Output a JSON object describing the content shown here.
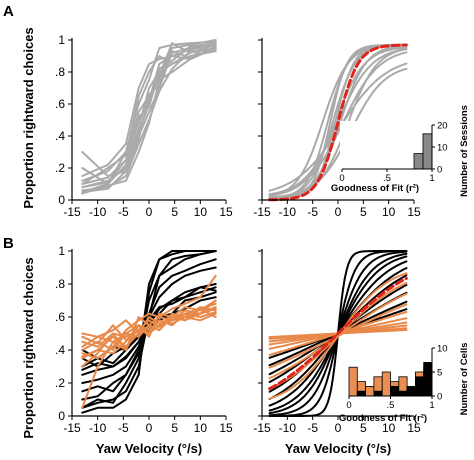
{
  "panel_labels": [
    "A",
    "B"
  ],
  "labels": {
    "ylabel_A": "Proportion rightward choices",
    "ylabel_B": "Proportion rightward choices",
    "xlabel_B_left": "Yaw Velocity (°/s)",
    "xlabel_B_right": "Yaw Velocity (°/s)",
    "inset_xlabel_A": "Goodness of Fit (r²)",
    "inset_ylabel_A": "Number of Sessions",
    "inset_xlabel_B": "Goodness of Fit (r²)",
    "inset_ylabel_B": "Number of Cells"
  },
  "colors": {
    "gray": "#aaaaaa",
    "black": "#000000",
    "orange": "#e8894a",
    "fit_mean": "#e0241b",
    "bar_gray": "#888888"
  },
  "chart_data": [
    {
      "id": "A-left-raw",
      "type": "line",
      "xlim": [
        -15,
        15
      ],
      "ylim": [
        0,
        1
      ],
      "xticks": [
        -15,
        -10,
        -5,
        0,
        5,
        10,
        15
      ],
      "yticks": [
        0,
        0.2,
        0.4,
        0.6,
        0.8,
        1
      ],
      "x": [
        -13,
        -8,
        -4.5,
        -2,
        0,
        2,
        4.5,
        8,
        13
      ],
      "series": [
        {
          "color": "gray",
          "values": [
            0.1,
            0.14,
            0.25,
            0.55,
            0.65,
            0.75,
            0.8,
            0.88,
            0.95
          ]
        },
        {
          "color": "gray",
          "values": [
            0.08,
            0.12,
            0.2,
            0.45,
            0.7,
            0.8,
            0.85,
            0.92,
            0.97
          ]
        },
        {
          "color": "gray",
          "values": [
            0.05,
            0.1,
            0.22,
            0.5,
            0.62,
            0.85,
            0.9,
            0.88,
            0.96
          ]
        },
        {
          "color": "gray",
          "values": [
            0.12,
            0.18,
            0.3,
            0.6,
            0.75,
            0.95,
            0.97,
            0.98,
            0.99
          ]
        },
        {
          "color": "gray",
          "values": [
            0.3,
            0.15,
            0.18,
            0.4,
            0.55,
            0.7,
            0.92,
            0.95,
            0.98
          ]
        },
        {
          "color": "gray",
          "values": [
            0.06,
            0.08,
            0.15,
            0.35,
            0.5,
            0.68,
            0.82,
            0.93,
            0.94
          ]
        },
        {
          "color": "gray",
          "values": [
            0.1,
            0.2,
            0.28,
            0.65,
            0.8,
            0.9,
            0.85,
            0.9,
            0.93
          ]
        },
        {
          "color": "gray",
          "values": [
            0.04,
            0.09,
            0.12,
            0.3,
            0.48,
            0.75,
            0.95,
            0.97,
            1.0
          ]
        },
        {
          "color": "gray",
          "values": [
            0.15,
            0.22,
            0.35,
            0.7,
            0.85,
            0.88,
            0.9,
            0.94,
            0.97
          ]
        },
        {
          "color": "gray",
          "values": [
            0.08,
            0.11,
            0.25,
            0.42,
            0.6,
            0.78,
            0.98,
            0.92,
            0.95
          ]
        },
        {
          "color": "gray",
          "values": [
            0.2,
            0.1,
            0.3,
            0.52,
            0.58,
            0.82,
            0.87,
            0.96,
            0.98
          ]
        },
        {
          "color": "gray",
          "values": [
            0.05,
            0.07,
            0.18,
            0.38,
            0.66,
            0.72,
            0.93,
            0.89,
            0.99
          ]
        }
      ]
    },
    {
      "id": "A-right-fits",
      "type": "line",
      "xlim": [
        -15,
        15
      ],
      "ylim": [
        0,
        1
      ],
      "xticks": [
        -15,
        -10,
        -5,
        0,
        5,
        10,
        15
      ],
      "yticks": [
        0,
        0.2,
        0.4,
        0.6,
        0.8,
        1
      ],
      "curve_range": [
        -13.5,
        13.5
      ],
      "series": [
        {
          "color": "gray",
          "model": "logistic",
          "mu": -1.0,
          "slope": 0.45,
          "lo": 0.01,
          "hi": 0.97
        },
        {
          "color": "gray",
          "model": "logistic",
          "mu": -0.5,
          "slope": 0.35,
          "lo": 0.02,
          "hi": 0.96
        },
        {
          "color": "gray",
          "model": "logistic",
          "mu": 0.0,
          "slope": 0.3,
          "lo": 0.02,
          "hi": 0.96
        },
        {
          "color": "gray",
          "model": "logistic",
          "mu": 0.5,
          "slope": 0.4,
          "lo": 0.01,
          "hi": 0.97
        },
        {
          "color": "gray",
          "model": "logistic",
          "mu": -2.0,
          "slope": 0.5,
          "lo": 0.01,
          "hi": 0.97
        },
        {
          "color": "gray",
          "model": "logistic",
          "mu": 1.0,
          "slope": 0.28,
          "lo": 0.02,
          "hi": 0.95
        },
        {
          "color": "gray",
          "model": "logistic",
          "mu": -1.5,
          "slope": 0.6,
          "lo": 0.01,
          "hi": 0.97
        },
        {
          "color": "gray",
          "model": "logistic",
          "mu": 2.0,
          "slope": 0.35,
          "lo": 0.01,
          "hi": 0.96
        },
        {
          "color": "gray",
          "model": "logistic",
          "mu": -3.0,
          "slope": 0.4,
          "lo": 0.01,
          "hi": 0.97
        },
        {
          "color": "gray",
          "model": "logistic",
          "mu": 0.5,
          "slope": 0.22,
          "lo": 0.02,
          "hi": 0.9
        },
        {
          "color": "gray",
          "model": "logistic",
          "mu": 2.5,
          "slope": 0.3,
          "lo": 0.01,
          "hi": 0.85
        },
        {
          "color": "gray",
          "model": "logistic",
          "mu": -0.5,
          "slope": 0.55,
          "lo": 0.01,
          "hi": 0.97
        },
        {
          "color": "fit_mean",
          "dashed": true,
          "model": "logistic",
          "mu": 0.0,
          "slope": 0.5,
          "lo": 0.0,
          "hi": 0.97
        }
      ],
      "inset": {
        "type": "bar",
        "xlim": [
          0,
          1
        ],
        "ylim": [
          0,
          20
        ],
        "xticks": [
          0,
          0.5,
          1
        ],
        "yticks": [
          0,
          10,
          20
        ],
        "bin_width": 0.1,
        "bins": [
          0.8,
          0.9
        ],
        "counts": [
          7,
          16
        ]
      }
    },
    {
      "id": "B-left-raw",
      "type": "line",
      "xlim": [
        -15,
        15
      ],
      "ylim": [
        0,
        1
      ],
      "xticks": [
        -15,
        -10,
        -5,
        0,
        5,
        10,
        15
      ],
      "yticks": [
        0,
        0.2,
        0.4,
        0.6,
        0.8,
        1
      ],
      "x": [
        -13,
        -10,
        -7,
        -4.5,
        -2,
        0,
        2,
        4.5,
        7,
        10,
        13
      ],
      "series": [
        {
          "color": "black",
          "values": [
            0.05,
            0.1,
            0.08,
            0.2,
            0.35,
            0.8,
            0.95,
            1.0,
            1.0,
            1.0,
            1.0
          ]
        },
        {
          "color": "black",
          "values": [
            0.1,
            0.12,
            0.2,
            0.25,
            0.4,
            0.7,
            0.85,
            0.9,
            0.95,
            0.98,
            1.0
          ]
        },
        {
          "color": "black",
          "values": [
            0.25,
            0.28,
            0.3,
            0.35,
            0.45,
            0.55,
            0.65,
            0.7,
            0.75,
            0.78,
            0.8
          ]
        },
        {
          "color": "black",
          "values": [
            0.3,
            0.35,
            0.32,
            0.4,
            0.48,
            0.52,
            0.6,
            0.62,
            0.7,
            0.72,
            0.75
          ]
        },
        {
          "color": "black",
          "values": [
            0.05,
            0.08,
            0.1,
            0.15,
            0.3,
            0.6,
            0.85,
            0.95,
            0.97,
            0.98,
            1.0
          ]
        },
        {
          "color": "black",
          "values": [
            0.4,
            0.35,
            0.42,
            0.4,
            0.5,
            0.55,
            0.58,
            0.62,
            0.65,
            0.7,
            0.72
          ]
        },
        {
          "color": "black",
          "values": [
            0.2,
            0.22,
            0.25,
            0.3,
            0.42,
            0.6,
            0.72,
            0.8,
            0.85,
            0.88,
            0.9
          ]
        },
        {
          "color": "black",
          "values": [
            0.15,
            0.18,
            0.15,
            0.25,
            0.38,
            0.62,
            0.78,
            0.85,
            0.88,
            0.92,
            0.95
          ]
        },
        {
          "color": "black",
          "values": [
            0.35,
            0.3,
            0.38,
            0.42,
            0.5,
            0.58,
            0.62,
            0.7,
            0.72,
            0.75,
            0.78
          ]
        },
        {
          "color": "black",
          "values": [
            0.02,
            0.05,
            0.05,
            0.1,
            0.25,
            0.75,
            0.95,
            0.98,
            1.0,
            1.0,
            1.0
          ]
        },
        {
          "color": "black",
          "values": [
            0.28,
            0.32,
            0.3,
            0.36,
            0.45,
            0.58,
            0.66,
            0.68,
            0.72,
            0.78,
            0.76
          ]
        },
        {
          "color": "orange",
          "values": [
            0.35,
            0.4,
            0.48,
            0.42,
            0.5,
            0.55,
            0.6,
            0.58,
            0.62,
            0.65,
            0.68
          ]
        },
        {
          "color": "orange",
          "values": [
            0.45,
            0.42,
            0.5,
            0.48,
            0.52,
            0.5,
            0.55,
            0.58,
            0.6,
            0.62,
            0.65
          ]
        },
        {
          "color": "orange",
          "values": [
            0.05,
            0.3,
            0.45,
            0.4,
            0.55,
            0.5,
            0.58,
            0.55,
            0.62,
            0.6,
            0.63
          ]
        },
        {
          "color": "orange",
          "values": [
            0.4,
            0.45,
            0.4,
            0.5,
            0.48,
            0.55,
            0.52,
            0.6,
            0.58,
            0.62,
            0.7
          ]
        },
        {
          "color": "orange",
          "values": [
            0.38,
            0.35,
            0.42,
            0.52,
            0.58,
            0.62,
            0.6,
            0.65,
            0.68,
            0.72,
            0.85
          ]
        },
        {
          "color": "orange",
          "values": [
            0.5,
            0.48,
            0.45,
            0.5,
            0.55,
            0.52,
            0.58,
            0.56,
            0.6,
            0.58,
            0.62
          ]
        },
        {
          "color": "orange",
          "values": [
            0.3,
            0.38,
            0.5,
            0.4,
            0.6,
            0.55,
            0.52,
            0.62,
            0.58,
            0.65,
            0.6
          ]
        },
        {
          "color": "orange",
          "values": [
            0.42,
            0.48,
            0.52,
            0.58,
            0.5,
            0.6,
            0.56,
            0.58,
            0.64,
            0.62,
            0.66
          ]
        },
        {
          "color": "orange",
          "values": [
            0.36,
            0.4,
            0.38,
            0.45,
            0.55,
            0.48,
            0.62,
            0.6,
            0.66,
            0.64,
            0.7
          ]
        },
        {
          "color": "orange",
          "values": [
            0.48,
            0.44,
            0.55,
            0.46,
            0.52,
            0.58,
            0.54,
            0.62,
            0.6,
            0.66,
            0.64
          ]
        }
      ]
    },
    {
      "id": "B-right-fits",
      "type": "line",
      "xlim": [
        -15,
        15
      ],
      "ylim": [
        0,
        1
      ],
      "xticks": [
        -15,
        -10,
        -5,
        0,
        5,
        10,
        15
      ],
      "yticks": [
        0,
        0.2,
        0.4,
        0.6,
        0.8,
        1
      ],
      "curve_range": [
        -13.5,
        13.5
      ],
      "series": [
        {
          "color": "black",
          "model": "logistic",
          "mu": 0,
          "slope": 1.2,
          "lo": 0.0,
          "hi": 1.0
        },
        {
          "color": "black",
          "model": "logistic",
          "mu": 0,
          "slope": 0.6,
          "lo": 0.0,
          "hi": 1.0
        },
        {
          "color": "black",
          "model": "logistic",
          "mu": 0,
          "slope": 0.4,
          "lo": 0.0,
          "hi": 1.0
        },
        {
          "color": "black",
          "model": "logistic",
          "mu": 0,
          "slope": 0.3,
          "lo": 0.0,
          "hi": 1.0
        },
        {
          "color": "black",
          "model": "logistic",
          "mu": 0,
          "slope": 0.25,
          "lo": 0.0,
          "hi": 1.0
        },
        {
          "color": "black",
          "model": "logistic",
          "mu": 0,
          "slope": 0.2,
          "lo": 0.0,
          "hi": 1.0
        },
        {
          "color": "black",
          "model": "logistic",
          "mu": 0,
          "slope": 0.16,
          "lo": 0.0,
          "hi": 1.0
        },
        {
          "color": "black",
          "model": "logistic",
          "mu": 0,
          "slope": 0.13,
          "lo": 0.0,
          "hi": 1.0
        },
        {
          "color": "black",
          "model": "logistic",
          "mu": 0,
          "slope": 0.1,
          "lo": 0.0,
          "hi": 1.0
        },
        {
          "color": "black",
          "model": "logistic",
          "mu": 0,
          "slope": 0.08,
          "lo": 0.0,
          "hi": 1.0
        },
        {
          "color": "black",
          "model": "logistic",
          "mu": 0,
          "slope": 0.06,
          "lo": 0.0,
          "hi": 1.0
        },
        {
          "color": "black",
          "model": "logistic",
          "mu": 0,
          "slope": 0.045,
          "lo": 0.0,
          "hi": 1.0
        },
        {
          "color": "orange",
          "model": "logistic",
          "mu": 0,
          "slope": 0.2,
          "lo": 0.05,
          "hi": 0.92
        },
        {
          "color": "orange",
          "model": "logistic",
          "mu": 0,
          "slope": 0.14,
          "lo": 0.05,
          "hi": 0.92
        },
        {
          "color": "orange",
          "model": "logistic",
          "mu": 0,
          "slope": 0.1,
          "lo": 0.05,
          "hi": 0.92
        },
        {
          "color": "orange",
          "model": "logistic",
          "mu": 0,
          "slope": 0.07,
          "lo": 0.05,
          "hi": 0.92
        },
        {
          "color": "orange",
          "model": "logistic",
          "mu": 0,
          "slope": 0.05,
          "lo": 0.1,
          "hi": 0.9
        },
        {
          "color": "orange",
          "model": "logistic",
          "mu": 0,
          "slope": 0.035,
          "lo": 0.1,
          "hi": 0.9
        },
        {
          "color": "orange",
          "model": "logistic",
          "mu": 0,
          "slope": 0.025,
          "lo": 0.1,
          "hi": 0.9
        },
        {
          "color": "orange",
          "model": "logistic",
          "mu": 0,
          "slope": 0.018,
          "lo": 0.1,
          "hi": 0.9
        },
        {
          "color": "orange",
          "model": "logistic",
          "mu": 0,
          "slope": 0.012,
          "lo": 0.1,
          "hi": 0.9
        },
        {
          "color": "orange",
          "model": "logistic",
          "mu": 0,
          "slope": 0.008,
          "lo": 0.1,
          "hi": 0.9
        },
        {
          "color": "fit_mean",
          "dashed": true,
          "model": "logistic",
          "mu": 0,
          "slope": 0.12,
          "lo": 0.0,
          "hi": 1.0
        }
      ],
      "inset": {
        "type": "bar",
        "xlim": [
          0,
          1
        ],
        "ylim": [
          0,
          10
        ],
        "xticks": [
          0,
          0.5,
          1
        ],
        "yticks": [
          0,
          5,
          10
        ],
        "bin_width": 0.1,
        "bins": [
          0.0,
          0.1,
          0.2,
          0.3,
          0.4,
          0.5,
          0.6,
          0.7,
          0.8,
          0.9
        ],
        "orange": [
          6,
          3,
          2,
          4,
          5,
          3,
          4,
          2,
          5,
          6
        ],
        "black": [
          0,
          1,
          0,
          1,
          0,
          2,
          1,
          2,
          4,
          7
        ]
      }
    }
  ]
}
